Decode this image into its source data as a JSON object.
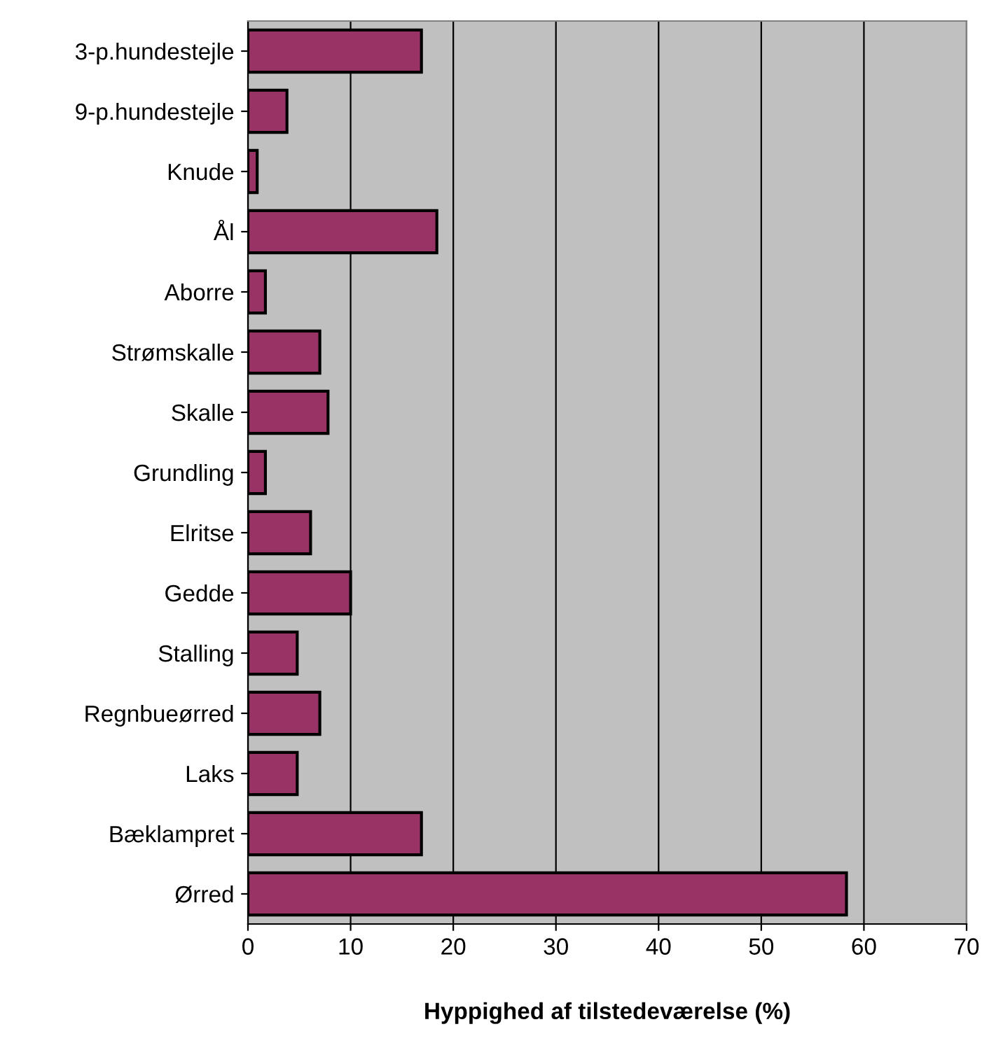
{
  "chart_data": {
    "type": "bar",
    "orientation": "horizontal",
    "xlabel": "Hyppighed af tilstedeværelse (%)",
    "categories": [
      "3-p.hundestejle",
      "9-p.hundestejle",
      "Knude",
      "Ål",
      "Aborre",
      "Strømskalle",
      "Skalle",
      "Grundling",
      "Elritse",
      "Gedde",
      "Stalling",
      "Regnbueørred",
      "Laks",
      "Bæklampret",
      "Ørred"
    ],
    "values": [
      16.9,
      3.8,
      0.9,
      18.4,
      1.7,
      7.0,
      7.8,
      1.7,
      6.1,
      10.0,
      4.8,
      7.0,
      4.8,
      16.9,
      58.3
    ],
    "color": "#993366",
    "xlim": [
      0,
      70
    ],
    "xticks": [
      0,
      10,
      20,
      30,
      40,
      50,
      60,
      70
    ],
    "grid": "x",
    "legend": false
  }
}
